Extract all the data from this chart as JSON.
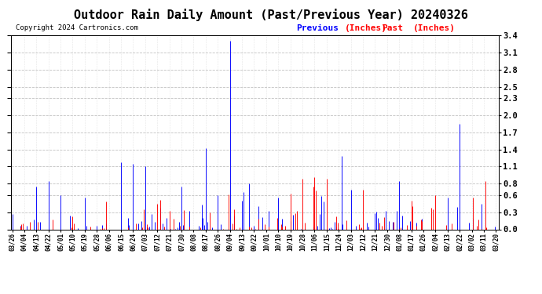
{
  "title": "Outdoor Rain Daily Amount (Past/Previous Year) 20240326",
  "copyright": "Copyright 2024 Cartronics.com",
  "legend_previous": "Previous",
  "legend_past": "Past",
  "legend_units": "(Inches)",
  "ylim": [
    0.0,
    3.4
  ],
  "yticks": [
    0.0,
    0.3,
    0.6,
    0.8,
    1.1,
    1.4,
    1.7,
    2.0,
    2.3,
    2.5,
    2.8,
    3.1,
    3.4
  ],
  "color_previous": "blue",
  "color_past": "red",
  "background_color": "white",
  "grid_color": "#bbbbbb",
  "start_date": "2023-03-26",
  "end_date": "2024-03-21",
  "title_fontsize": 11,
  "tick_step_days": 9
}
